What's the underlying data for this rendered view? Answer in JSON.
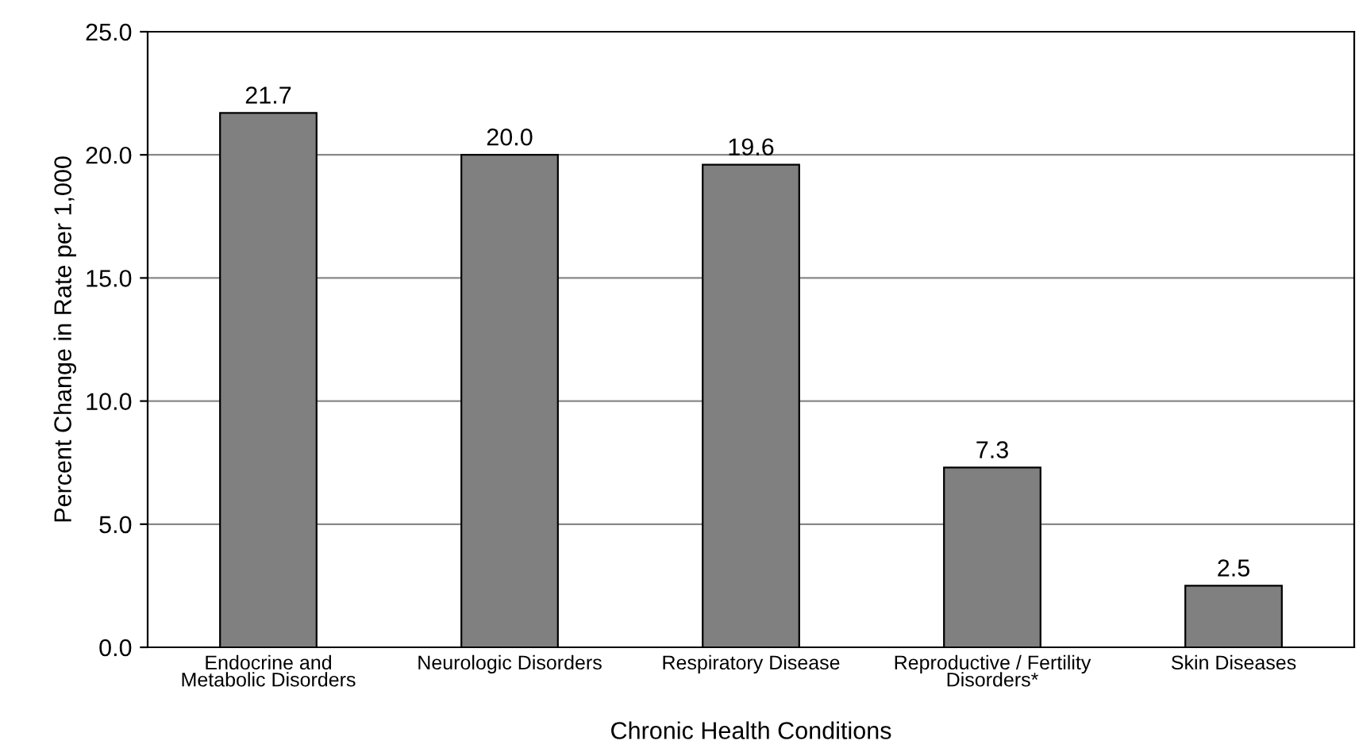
{
  "chart_data": {
    "type": "bar",
    "xlabel": "Chronic Health Conditions",
    "ylabel": "Percent Change in Rate per 1,000",
    "categories": [
      "Endocrine and\nMetabolic Disorders",
      "Neurologic Disorders",
      "Respiratory Disease",
      "Reproductive / Fertility\nDisorders*",
      "Skin Diseases"
    ],
    "values": [
      21.7,
      20.0,
      19.6,
      7.3,
      2.5
    ],
    "value_labels": [
      "21.7",
      "20.0",
      "19.6",
      "7.3",
      "2.5"
    ],
    "color": "#808080",
    "ylim": [
      0,
      25
    ],
    "yticks": [
      {
        "value": 0,
        "label": "0.0"
      },
      {
        "value": 5,
        "label": "5.0"
      },
      {
        "value": 10,
        "label": "10.0"
      },
      {
        "value": 15,
        "label": "15.0"
      },
      {
        "value": 20,
        "label": "20.0"
      },
      {
        "value": 25,
        "label": "25.0"
      }
    ],
    "grid": "y"
  }
}
